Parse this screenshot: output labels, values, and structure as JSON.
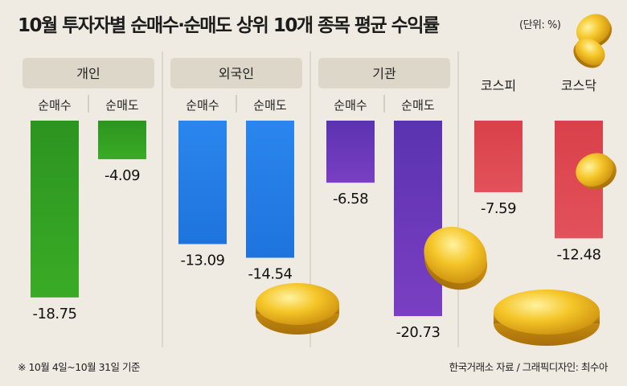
{
  "title": "10월 투자자별 순매수·순매도 상위 10개 종목 평균 수익률",
  "unit": "(단위: %)",
  "footnote": "※ 10월 4일~10월 31일 기준",
  "credit": "한국거래소 자료 / 그래픽디자인: 최수아",
  "chart_data": {
    "type": "bar",
    "title": "10월 투자자별 순매수·순매도 상위 10개 종목 평균 수익률",
    "unit": "%",
    "groups": [
      {
        "name": "개인",
        "bars": [
          {
            "label": "순매수",
            "value": -18.75
          },
          {
            "label": "순매도",
            "value": -4.09
          }
        ]
      },
      {
        "name": "외국인",
        "bars": [
          {
            "label": "순매수",
            "value": -13.09
          },
          {
            "label": "순매도",
            "value": -14.54
          }
        ]
      },
      {
        "name": "기관",
        "bars": [
          {
            "label": "순매수",
            "value": -6.58
          },
          {
            "label": "순매도",
            "value": -20.73
          }
        ]
      }
    ],
    "indices": [
      {
        "name": "코스피",
        "value": -7.59
      },
      {
        "name": "코스닥",
        "value": -12.48
      }
    ],
    "colors": {
      "개인": "#2f9c1f",
      "외국인": "#1f7ee6",
      "기관": "#6a35b8",
      "index": "#d8414a"
    },
    "ylim": [
      -22,
      0
    ]
  }
}
